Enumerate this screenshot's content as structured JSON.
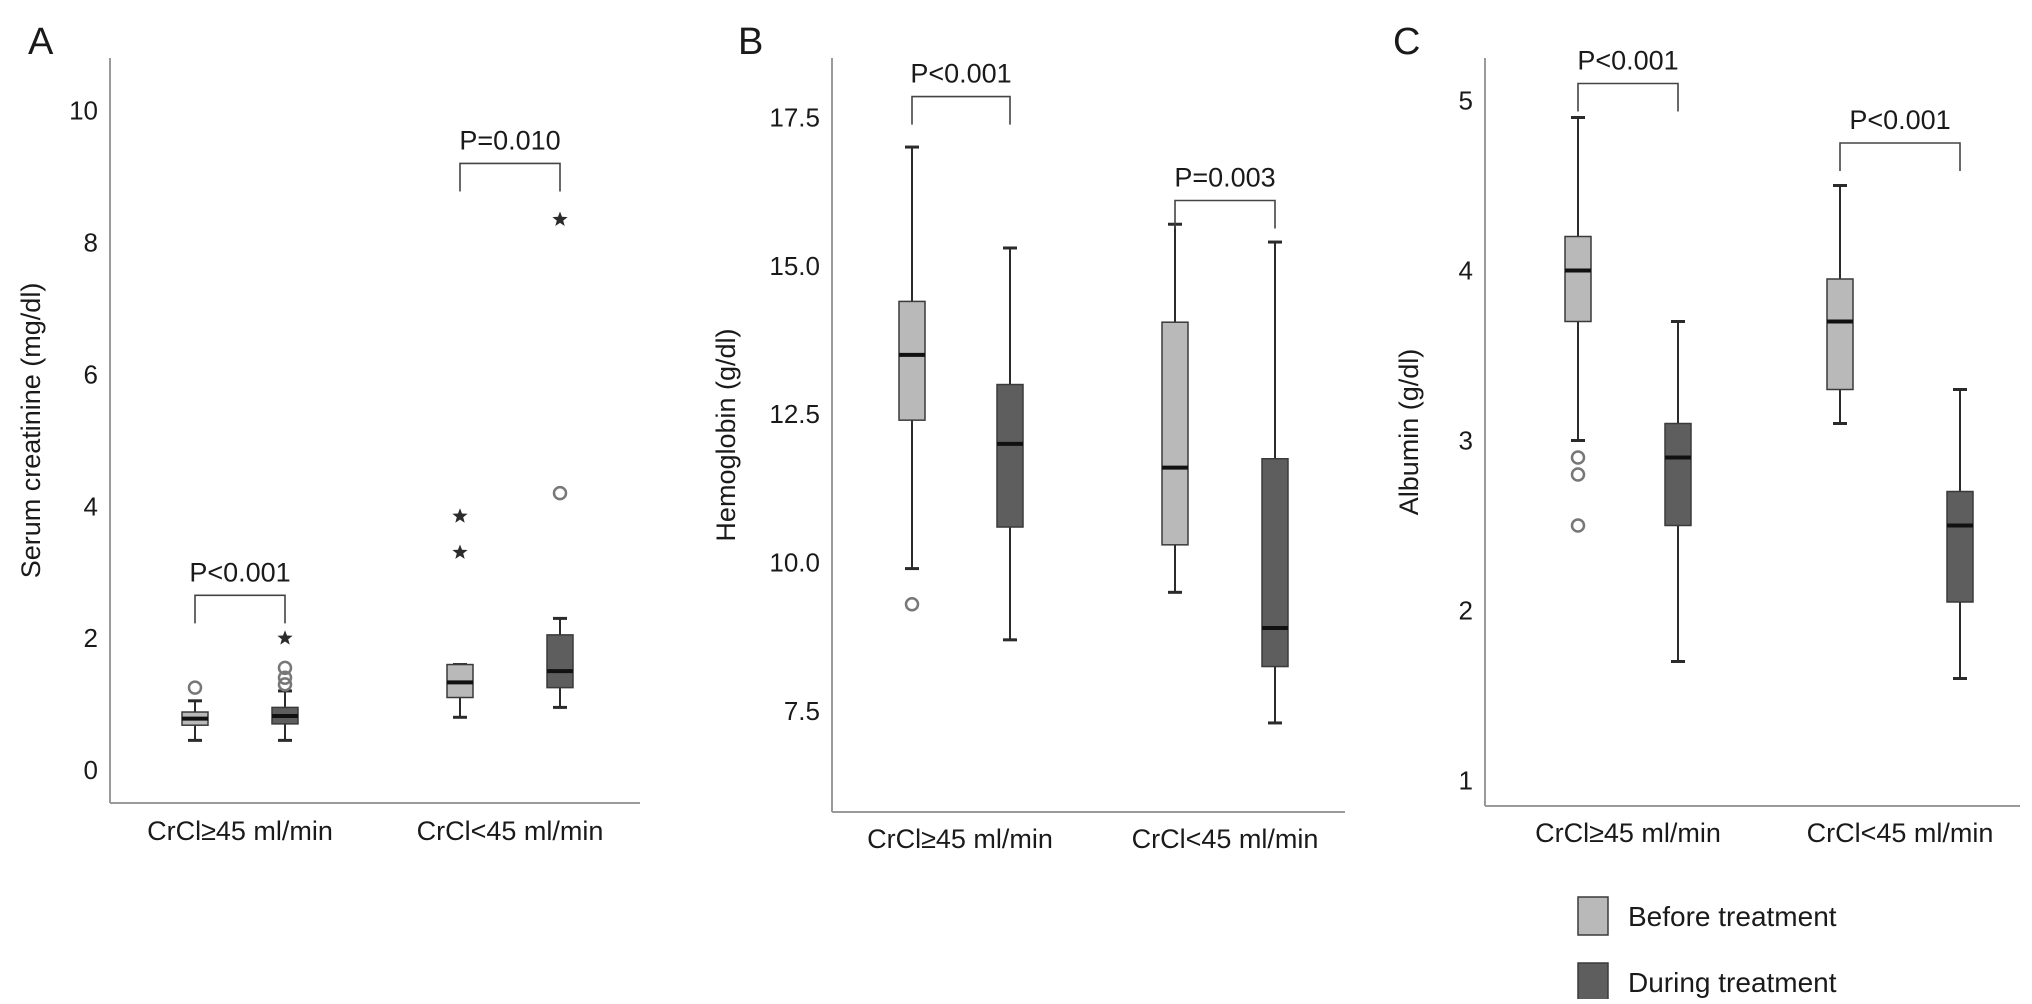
{
  "figure": {
    "colors": {
      "before": "#b9b9b9",
      "during": "#5e5e5e",
      "axis": "#9a9a9a",
      "ink": "#1a1a1a"
    },
    "legend": [
      {
        "label": "Before treatment",
        "color": "#b9b9b9"
      },
      {
        "label": "During treatment",
        "color": "#5e5e5e"
      }
    ]
  },
  "chart_data": [
    {
      "panel": "A",
      "type": "box",
      "ylabel": "Serum creatinine (mg/dl)",
      "ylim": [
        -0.5,
        10.8
      ],
      "yticks": [
        0,
        2,
        4,
        6,
        8,
        10
      ],
      "categories": [
        "CrCl≥45 ml/min",
        "CrCl<45 ml/min"
      ],
      "series": [
        {
          "group": "Before treatment",
          "boxes": [
            {
              "category": "CrCl≥45 ml/min",
              "min": 0.45,
              "q1": 0.68,
              "median": 0.78,
              "q3": 0.88,
              "max": 1.05,
              "outliers": [
                {
                  "value": 1.25,
                  "marker": "circle"
                }
              ]
            },
            {
              "category": "CrCl<45 ml/min",
              "min": 0.8,
              "q1": 1.1,
              "median": 1.33,
              "q3": 1.6,
              "max": 1.6,
              "outliers": [
                {
                  "value": 3.3,
                  "marker": "star"
                },
                {
                  "value": 3.85,
                  "marker": "star"
                }
              ]
            }
          ]
        },
        {
          "group": "During treatment",
          "boxes": [
            {
              "category": "CrCl≥45 ml/min",
              "min": 0.45,
              "q1": 0.7,
              "median": 0.82,
              "q3": 0.95,
              "max": 1.2,
              "outliers": [
                {
                  "value": 1.3,
                  "marker": "circle"
                },
                {
                  "value": 1.4,
                  "marker": "circle"
                },
                {
                  "value": 1.55,
                  "marker": "circle"
                },
                {
                  "value": 2.0,
                  "marker": "star"
                }
              ]
            },
            {
              "category": "CrCl<45 ml/min",
              "min": 0.95,
              "q1": 1.25,
              "median": 1.5,
              "q3": 2.05,
              "max": 2.3,
              "outliers": [
                {
                  "value": 4.2,
                  "marker": "circle"
                },
                {
                  "value": 8.35,
                  "marker": "star"
                }
              ]
            }
          ]
        }
      ],
      "annotations": [
        {
          "category": "CrCl≥45 ml/min",
          "text": "P<0.001",
          "at": 2.65
        },
        {
          "category": "CrCl<45 ml/min",
          "text": "P=0.010",
          "at": 9.2
        }
      ]
    },
    {
      "panel": "B",
      "type": "box",
      "ylabel": "Hemoglobin (g/dl)",
      "ylim": [
        5.8,
        18.5
      ],
      "yticks": [
        7.5,
        10.0,
        12.5,
        15.0,
        17.5
      ],
      "categories": [
        "CrCl≥45 ml/min",
        "CrCl<45 ml/min"
      ],
      "series": [
        {
          "group": "Before treatment",
          "boxes": [
            {
              "category": "CrCl≥45 ml/min",
              "min": 9.9,
              "q1": 12.4,
              "median": 13.5,
              "q3": 14.4,
              "max": 17.0,
              "outliers": [
                {
                  "value": 9.3,
                  "marker": "circle"
                }
              ]
            },
            {
              "category": "CrCl<45 ml/min",
              "min": 9.5,
              "q1": 10.3,
              "median": 11.6,
              "q3": 14.05,
              "max": 15.7,
              "outliers": []
            }
          ]
        },
        {
          "group": "During treatment",
          "boxes": [
            {
              "category": "CrCl≥45 ml/min",
              "min": 8.7,
              "q1": 10.6,
              "median": 12.0,
              "q3": 13.0,
              "max": 15.3,
              "outliers": []
            },
            {
              "category": "CrCl<45 ml/min",
              "min": 7.3,
              "q1": 8.25,
              "median": 8.9,
              "q3": 11.75,
              "max": 15.4,
              "outliers": []
            }
          ]
        }
      ],
      "annotations": [
        {
          "category": "CrCl≥45 ml/min",
          "text": "P<0.001",
          "at": 17.85
        },
        {
          "category": "CrCl<45 ml/min",
          "text": "P=0.003",
          "at": 16.1
        }
      ]
    },
    {
      "panel": "C",
      "type": "box",
      "ylabel": "Albumin (g/dl)",
      "ylim": [
        0.85,
        5.25
      ],
      "yticks": [
        1,
        2,
        3,
        4,
        5
      ],
      "categories": [
        "CrCl≥45 ml/min",
        "CrCl<45 ml/min"
      ],
      "series": [
        {
          "group": "Before treatment",
          "boxes": [
            {
              "category": "CrCl≥45 ml/min",
              "min": 3.0,
              "q1": 3.7,
              "median": 4.0,
              "q3": 4.2,
              "max": 4.9,
              "outliers": [
                {
                  "value": 2.5,
                  "marker": "circle"
                },
                {
                  "value": 2.8,
                  "marker": "circle"
                },
                {
                  "value": 2.9,
                  "marker": "circle"
                }
              ]
            },
            {
              "category": "CrCl<45 ml/min",
              "min": 3.1,
              "q1": 3.3,
              "median": 3.7,
              "q3": 3.95,
              "max": 4.5,
              "outliers": []
            }
          ]
        },
        {
          "group": "During treatment",
          "boxes": [
            {
              "category": "CrCl≥45 ml/min",
              "min": 1.7,
              "q1": 2.5,
              "median": 2.9,
              "q3": 3.1,
              "max": 3.7,
              "outliers": []
            },
            {
              "category": "CrCl<45 ml/min",
              "min": 1.6,
              "q1": 2.05,
              "median": 2.5,
              "q3": 2.7,
              "max": 3.3,
              "outliers": []
            }
          ]
        }
      ],
      "annotations": [
        {
          "category": "CrCl≥45 ml/min",
          "text": "P<0.001",
          "at": 5.1
        },
        {
          "category": "CrCl<45 ml/min",
          "text": "P<0.001",
          "at": 4.75
        }
      ]
    }
  ]
}
